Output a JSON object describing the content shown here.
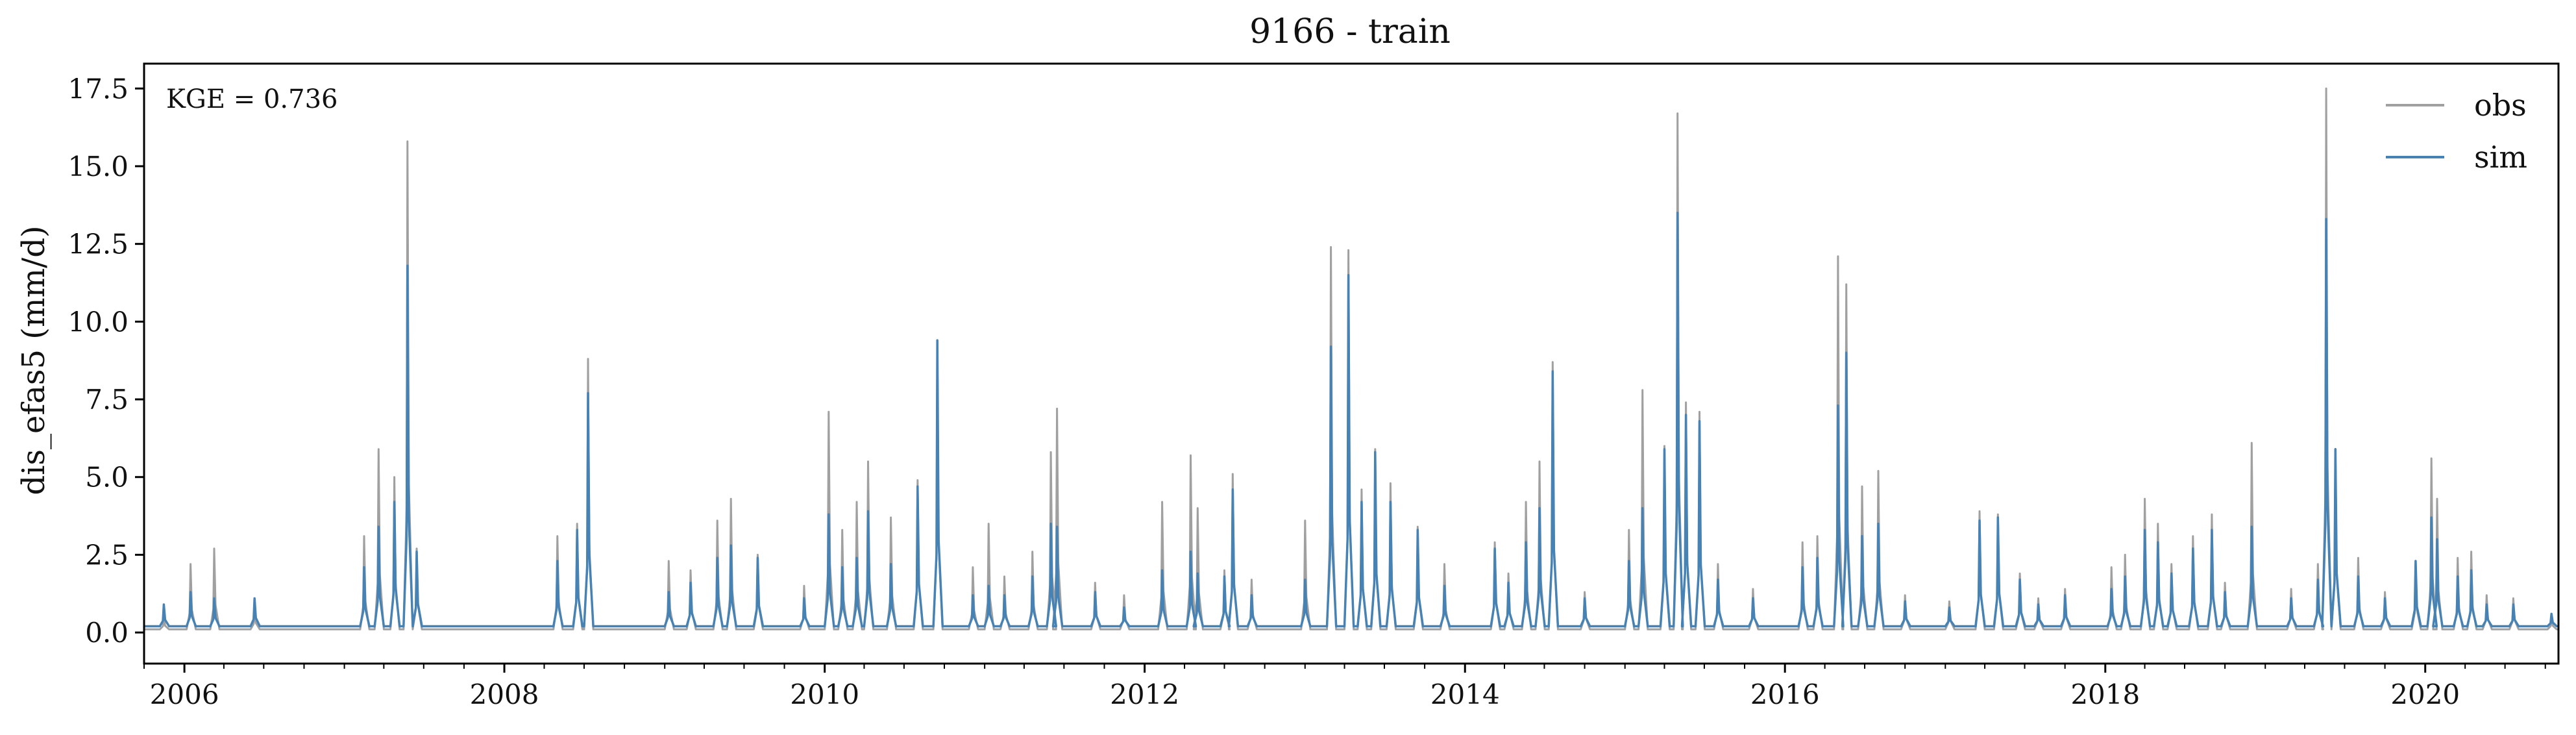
{
  "chart_data": {
    "type": "line",
    "title": "9166 - train",
    "xlabel": "",
    "ylabel": "dis_efas5 (mm/d)",
    "annotation": "KGE = 0.736",
    "xlim": [
      "2005-10-01",
      "2020-10-31"
    ],
    "ylim": [
      -1.0,
      18.3
    ],
    "x_ticks": [
      "2006",
      "2008",
      "2010",
      "2012",
      "2014",
      "2016",
      "2018",
      "2020"
    ],
    "y_ticks": [
      "0.0",
      "2.5",
      "5.0",
      "7.5",
      "10.0",
      "12.5",
      "15.0",
      "17.5"
    ],
    "legend_position": "top-right",
    "grid": false,
    "series": [
      {
        "name": "obs",
        "color": "#a0a0a0",
        "baseline": 0.1,
        "peaks": [
          [
            "2005-11-15",
            0.5
          ],
          [
            "2006-01-15",
            2.2
          ],
          [
            "2006-03-10",
            2.7
          ],
          [
            "2006-06-10",
            0.8
          ],
          [
            "2007-02-15",
            3.1
          ],
          [
            "2007-03-20",
            5.9
          ],
          [
            "2007-04-25",
            5.0
          ],
          [
            "2007-05-25",
            15.8
          ],
          [
            "2007-06-15",
            2.7
          ],
          [
            "2008-05-01",
            3.1
          ],
          [
            "2008-06-15",
            3.5
          ],
          [
            "2008-07-10",
            8.8
          ],
          [
            "2009-01-10",
            2.3
          ],
          [
            "2009-03-01",
            2.0
          ],
          [
            "2009-05-01",
            3.6
          ],
          [
            "2009-06-01",
            4.3
          ],
          [
            "2009-08-01",
            2.5
          ],
          [
            "2009-11-15",
            1.5
          ],
          [
            "2010-01-10",
            7.1
          ],
          [
            "2010-02-10",
            3.3
          ],
          [
            "2010-03-15",
            4.2
          ],
          [
            "2010-04-10",
            5.5
          ],
          [
            "2010-06-01",
            3.7
          ],
          [
            "2010-08-01",
            4.9
          ],
          [
            "2010-09-15",
            9.3
          ],
          [
            "2010-12-05",
            2.1
          ],
          [
            "2011-01-10",
            3.5
          ],
          [
            "2011-02-15",
            1.8
          ],
          [
            "2011-04-20",
            2.6
          ],
          [
            "2011-06-01",
            5.8
          ],
          [
            "2011-06-15",
            7.2
          ],
          [
            "2011-09-10",
            1.6
          ],
          [
            "2011-11-15",
            1.2
          ],
          [
            "2012-02-10",
            4.2
          ],
          [
            "2012-04-15",
            5.7
          ],
          [
            "2012-05-01",
            4.0
          ],
          [
            "2012-07-01",
            2.0
          ],
          [
            "2012-07-20",
            5.1
          ],
          [
            "2012-09-01",
            1.7
          ],
          [
            "2013-01-01",
            3.6
          ],
          [
            "2013-03-01",
            12.4
          ],
          [
            "2013-04-10",
            12.3
          ],
          [
            "2013-05-10",
            4.6
          ],
          [
            "2013-06-10",
            5.9
          ],
          [
            "2013-07-15",
            4.8
          ],
          [
            "2013-09-15",
            3.4
          ],
          [
            "2013-11-15",
            2.2
          ],
          [
            "2014-03-10",
            2.9
          ],
          [
            "2014-04-10",
            1.9
          ],
          [
            "2014-05-20",
            4.2
          ],
          [
            "2014-06-20",
            5.5
          ],
          [
            "2014-07-20",
            8.7
          ],
          [
            "2014-10-01",
            1.3
          ],
          [
            "2015-01-10",
            3.3
          ],
          [
            "2015-02-10",
            7.8
          ],
          [
            "2015-04-01",
            6.0
          ],
          [
            "2015-05-01",
            16.7
          ],
          [
            "2015-05-20",
            7.4
          ],
          [
            "2015-06-20",
            7.1
          ],
          [
            "2015-08-01",
            2.2
          ],
          [
            "2015-10-20",
            1.4
          ],
          [
            "2016-02-10",
            2.9
          ],
          [
            "2016-03-15",
            3.1
          ],
          [
            "2016-05-01",
            12.1
          ],
          [
            "2016-05-20",
            11.2
          ],
          [
            "2016-06-25",
            4.7
          ],
          [
            "2016-08-01",
            5.2
          ],
          [
            "2016-10-01",
            1.2
          ],
          [
            "2017-01-10",
            1.0
          ],
          [
            "2017-03-20",
            3.9
          ],
          [
            "2017-05-01",
            3.8
          ],
          [
            "2017-06-20",
            1.9
          ],
          [
            "2017-08-01",
            1.1
          ],
          [
            "2017-10-01",
            1.4
          ],
          [
            "2018-01-15",
            2.1
          ],
          [
            "2018-02-15",
            2.5
          ],
          [
            "2018-04-01",
            4.3
          ],
          [
            "2018-05-01",
            3.5
          ],
          [
            "2018-06-01",
            2.2
          ],
          [
            "2018-07-20",
            3.1
          ],
          [
            "2018-09-01",
            3.8
          ],
          [
            "2018-10-01",
            1.6
          ],
          [
            "2018-12-01",
            6.1
          ],
          [
            "2019-03-01",
            1.4
          ],
          [
            "2019-05-01",
            2.2
          ],
          [
            "2019-05-20",
            17.5
          ],
          [
            "2019-06-10",
            5.9
          ],
          [
            "2019-08-01",
            2.4
          ],
          [
            "2019-10-01",
            1.3
          ],
          [
            "2019-12-10",
            2.2
          ],
          [
            "2020-01-15",
            5.6
          ],
          [
            "2020-01-28",
            4.3
          ],
          [
            "2020-03-15",
            2.4
          ],
          [
            "2020-04-15",
            2.6
          ],
          [
            "2020-05-20",
            1.2
          ],
          [
            "2020-07-20",
            1.1
          ],
          [
            "2020-10-15",
            0.5
          ]
        ]
      },
      {
        "name": "sim",
        "color": "#4682b4",
        "baseline": 0.2,
        "peaks": [
          [
            "2005-11-15",
            0.9
          ],
          [
            "2006-01-15",
            1.3
          ],
          [
            "2006-03-10",
            1.1
          ],
          [
            "2006-06-10",
            1.1
          ],
          [
            "2007-02-15",
            2.1
          ],
          [
            "2007-03-20",
            3.4
          ],
          [
            "2007-04-25",
            4.2
          ],
          [
            "2007-05-25",
            11.8
          ],
          [
            "2007-06-15",
            2.6
          ],
          [
            "2008-05-01",
            2.3
          ],
          [
            "2008-06-15",
            3.3
          ],
          [
            "2008-07-10",
            7.7
          ],
          [
            "2009-01-10",
            1.3
          ],
          [
            "2009-03-01",
            1.6
          ],
          [
            "2009-05-01",
            2.4
          ],
          [
            "2009-06-01",
            2.8
          ],
          [
            "2009-08-01",
            2.4
          ],
          [
            "2009-11-15",
            1.1
          ],
          [
            "2010-01-10",
            3.8
          ],
          [
            "2010-02-10",
            2.1
          ],
          [
            "2010-03-15",
            2.4
          ],
          [
            "2010-04-10",
            3.9
          ],
          [
            "2010-06-01",
            2.2
          ],
          [
            "2010-08-01",
            4.7
          ],
          [
            "2010-09-15",
            9.4
          ],
          [
            "2010-12-05",
            1.2
          ],
          [
            "2011-01-10",
            1.5
          ],
          [
            "2011-02-15",
            1.2
          ],
          [
            "2011-04-20",
            1.8
          ],
          [
            "2011-06-01",
            3.5
          ],
          [
            "2011-06-15",
            3.4
          ],
          [
            "2011-09-10",
            1.3
          ],
          [
            "2011-11-15",
            0.8
          ],
          [
            "2012-02-10",
            2.0
          ],
          [
            "2012-04-15",
            2.6
          ],
          [
            "2012-05-01",
            1.9
          ],
          [
            "2012-07-01",
            1.8
          ],
          [
            "2012-07-20",
            4.6
          ],
          [
            "2012-09-01",
            1.2
          ],
          [
            "2013-01-01",
            1.7
          ],
          [
            "2013-03-01",
            9.2
          ],
          [
            "2013-04-10",
            11.5
          ],
          [
            "2013-05-10",
            4.2
          ],
          [
            "2013-06-10",
            5.8
          ],
          [
            "2013-07-15",
            4.2
          ],
          [
            "2013-09-15",
            3.3
          ],
          [
            "2013-11-15",
            1.5
          ],
          [
            "2014-03-10",
            2.7
          ],
          [
            "2014-04-10",
            1.6
          ],
          [
            "2014-05-20",
            2.9
          ],
          [
            "2014-06-20",
            4.0
          ],
          [
            "2014-07-20",
            8.4
          ],
          [
            "2014-10-01",
            1.1
          ],
          [
            "2015-01-10",
            2.3
          ],
          [
            "2015-02-10",
            4.0
          ],
          [
            "2015-04-01",
            5.9
          ],
          [
            "2015-05-01",
            13.5
          ],
          [
            "2015-05-20",
            7.0
          ],
          [
            "2015-06-20",
            6.8
          ],
          [
            "2015-08-01",
            1.7
          ],
          [
            "2015-10-20",
            1.1
          ],
          [
            "2016-02-10",
            2.1
          ],
          [
            "2016-03-15",
            2.4
          ],
          [
            "2016-05-01",
            7.3
          ],
          [
            "2016-05-20",
            9.0
          ],
          [
            "2016-06-25",
            3.1
          ],
          [
            "2016-08-01",
            3.5
          ],
          [
            "2016-10-01",
            1.0
          ],
          [
            "2017-01-10",
            0.8
          ],
          [
            "2017-03-20",
            3.6
          ],
          [
            "2017-05-01",
            3.7
          ],
          [
            "2017-06-20",
            1.7
          ],
          [
            "2017-08-01",
            0.9
          ],
          [
            "2017-10-01",
            1.2
          ],
          [
            "2018-01-15",
            1.4
          ],
          [
            "2018-02-15",
            1.8
          ],
          [
            "2018-04-01",
            3.3
          ],
          [
            "2018-05-01",
            2.9
          ],
          [
            "2018-06-01",
            1.9
          ],
          [
            "2018-07-20",
            2.7
          ],
          [
            "2018-09-01",
            3.3
          ],
          [
            "2018-10-01",
            1.3
          ],
          [
            "2018-12-01",
            3.4
          ],
          [
            "2019-03-01",
            1.1
          ],
          [
            "2019-05-01",
            1.7
          ],
          [
            "2019-05-20",
            13.3
          ],
          [
            "2019-06-10",
            5.9
          ],
          [
            "2019-08-01",
            1.8
          ],
          [
            "2019-10-01",
            1.1
          ],
          [
            "2019-12-10",
            2.3
          ],
          [
            "2020-01-15",
            3.7
          ],
          [
            "2020-01-28",
            3.0
          ],
          [
            "2020-03-15",
            1.8
          ],
          [
            "2020-04-15",
            2.0
          ],
          [
            "2020-05-20",
            0.9
          ],
          [
            "2020-07-20",
            0.9
          ],
          [
            "2020-10-15",
            0.6
          ]
        ]
      }
    ]
  }
}
